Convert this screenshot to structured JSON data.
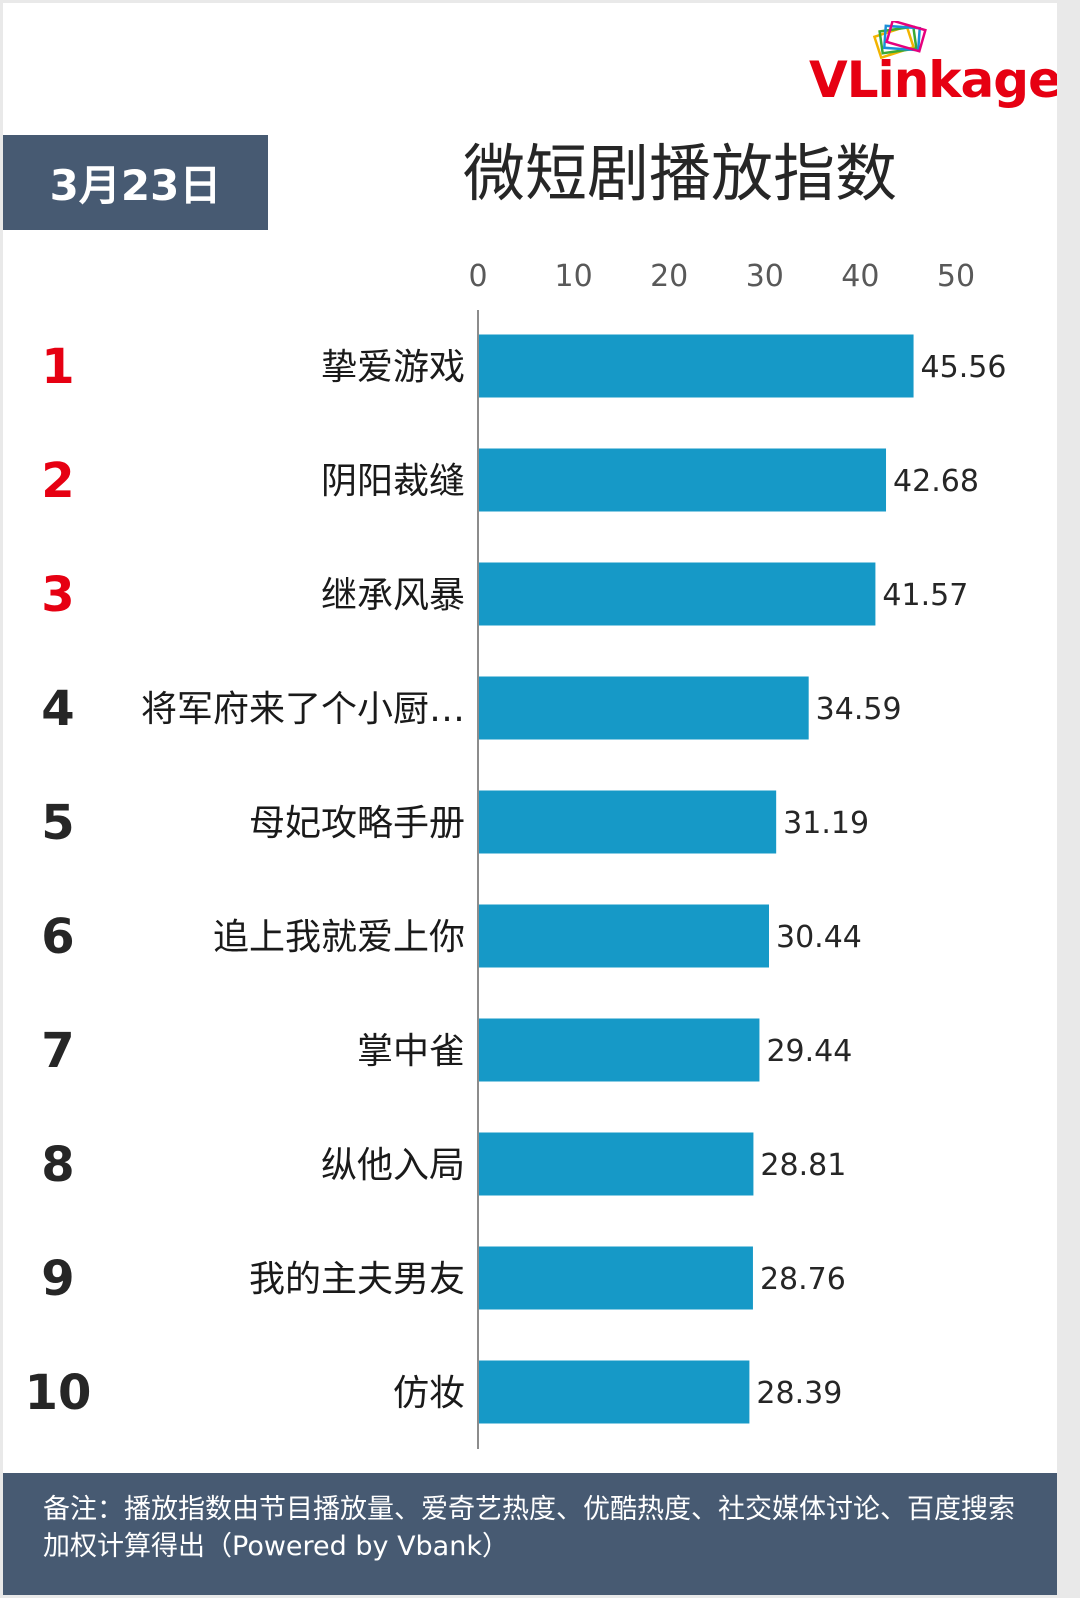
{
  "logo": {
    "text": "VLinkage"
  },
  "date_badge": "3月23日",
  "footer_note": "备注：播放指数由节目播放量、爱奇艺热度、优酷热度、社交媒体讨论、百度搜索加权计算得出（Powered by Vbank）",
  "colors": {
    "bar": "#1699c7",
    "badge": "#475a72",
    "top_rank": "#e60012",
    "other_rank": "#262626",
    "logo": "#e60012"
  },
  "chart_data": {
    "type": "bar",
    "orientation": "horizontal",
    "title": "微短剧播放指数",
    "xlim": [
      0,
      50
    ],
    "xticks": [
      0,
      10,
      20,
      30,
      40,
      50
    ],
    "grid": false,
    "ranks": [
      "1",
      "2",
      "3",
      "4",
      "5",
      "6",
      "7",
      "8",
      "9",
      "10"
    ],
    "categories": [
      "挚爱游戏",
      "阴阳裁缝",
      "继承风暴",
      "将军府来了个小厨…",
      "母妃攻略手册",
      "追上我就爱上你",
      "掌中雀",
      "纵他入局",
      "我的主夫男友",
      "仿妆"
    ],
    "values": [
      45.56,
      42.68,
      41.57,
      34.59,
      31.19,
      30.44,
      29.44,
      28.81,
      28.76,
      28.39
    ],
    "value_labels": [
      "45.56",
      "42.68",
      "41.57",
      "34.59",
      "31.19",
      "30.44",
      "29.44",
      "28.81",
      "28.76",
      "28.39"
    ]
  }
}
